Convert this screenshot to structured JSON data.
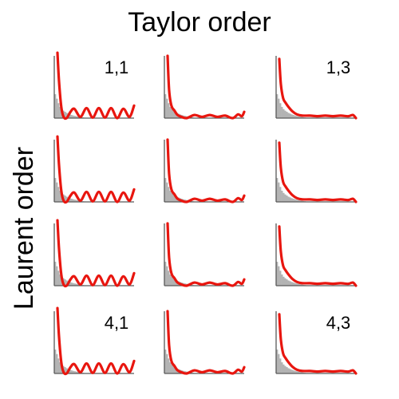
{
  "title": "Taylor order",
  "ylabel": "Laurent order",
  "colors": {
    "curve": "#e8160f",
    "hist": "#b3b3b3",
    "axis": "#595959"
  },
  "chart_data": {
    "type": "line",
    "rows": 4,
    "cols": 3,
    "axes": {
      "ticks": false,
      "grid": false
    },
    "panels": [
      {
        "label": "1,1",
        "row": 1,
        "col": 1,
        "variant": "osc"
      },
      {
        "label": "",
        "row": 1,
        "col": 2,
        "variant": "mid"
      },
      {
        "label": "1,3",
        "row": 1,
        "col": 3,
        "variant": "smooth"
      },
      {
        "label": "",
        "row": 2,
        "col": 1,
        "variant": "osc"
      },
      {
        "label": "",
        "row": 2,
        "col": 2,
        "variant": "mid"
      },
      {
        "label": "",
        "row": 2,
        "col": 3,
        "variant": "smooth"
      },
      {
        "label": "",
        "row": 3,
        "col": 1,
        "variant": "osc"
      },
      {
        "label": "",
        "row": 3,
        "col": 2,
        "variant": "mid"
      },
      {
        "label": "",
        "row": 3,
        "col": 3,
        "variant": "smooth"
      },
      {
        "label": "4,1",
        "row": 4,
        "col": 1,
        "variant": "osc"
      },
      {
        "label": "",
        "row": 4,
        "col": 2,
        "variant": "mid"
      },
      {
        "label": "4,3",
        "row": 4,
        "col": 3,
        "variant": "smooth"
      }
    ],
    "histogram": [
      0.32,
      0.26,
      0.2,
      0.15,
      0.12,
      0.1,
      0.085,
      0.07,
      0.06,
      0.05,
      0.042,
      0.035,
      0.03,
      0.025,
      0.02,
      0.016,
      0.012,
      0.009,
      0.006,
      0.004,
      0.003,
      0.002
    ],
    "curves": {
      "osc": {
        "x": [
          0,
          0.02,
          0.05,
          0.08,
          0.12,
          0.17,
          0.22,
          0.3,
          0.38,
          0.46,
          0.54,
          0.62,
          0.7,
          0.78,
          0.86,
          0.94,
          1.0
        ],
        "y": [
          1.05,
          0.6,
          0.18,
          0.02,
          0.0,
          0.1,
          0.15,
          0.02,
          0.16,
          0.01,
          0.16,
          0.01,
          0.16,
          0.0,
          0.15,
          0.02,
          0.2
        ]
      },
      "mid": {
        "x": [
          0,
          0.02,
          0.05,
          0.09,
          0.13,
          0.18,
          0.25,
          0.35,
          0.45,
          0.55,
          0.65,
          0.75,
          0.85,
          0.92,
          0.97,
          1.0
        ],
        "y": [
          1.0,
          0.45,
          0.2,
          0.12,
          0.05,
          0.02,
          0.0,
          0.05,
          0.02,
          0.05,
          0.02,
          0.04,
          0.0,
          0.06,
          0.03,
          0.1
        ]
      },
      "smooth": {
        "x": [
          0,
          0.02,
          0.05,
          0.08,
          0.12,
          0.17,
          0.23,
          0.3,
          0.4,
          0.5,
          0.6,
          0.7,
          0.8,
          0.9,
          0.96,
          1.0
        ],
        "y": [
          0.95,
          0.55,
          0.32,
          0.25,
          0.18,
          0.11,
          0.06,
          0.04,
          0.04,
          0.03,
          0.04,
          0.03,
          0.04,
          0.03,
          0.05,
          0.0
        ]
      }
    }
  }
}
